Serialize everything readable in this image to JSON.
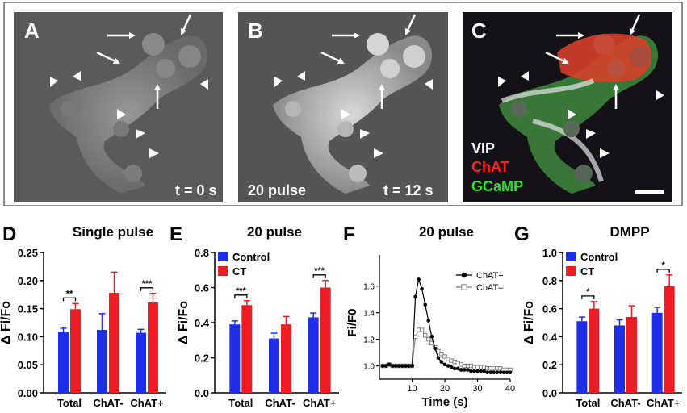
{
  "colors": {
    "control": "#1f2fe6",
    "ct": "#ee1c24",
    "chat_plus": "#000000",
    "chat_minus": "#7f7f7f",
    "vip_label": "#ffffff",
    "chat_label": "#ff2020",
    "gcamp_label": "#33dd33"
  },
  "micrographs": {
    "a": {
      "letter": "A",
      "time_label": "t = 0 s"
    },
    "b": {
      "letter": "B",
      "pulse_label": "20 pulse",
      "time_label": "t = 12 s"
    },
    "c": {
      "letter": "C",
      "legend": [
        "VIP",
        "ChAT",
        "GCaMP"
      ]
    }
  },
  "chart_data": [
    {
      "panel": "D",
      "type": "bar",
      "title": "Single pulse",
      "ylabel": "Δ Fi/Fo",
      "xlabel": "",
      "ylim": [
        0,
        0.25
      ],
      "yticks": [
        "0.00",
        "0.05",
        "0.10",
        "0.15",
        "0.20",
        "0.25"
      ],
      "ytick_values": [
        0,
        0.05,
        0.1,
        0.15,
        0.2,
        0.25
      ],
      "categories": [
        "Total",
        "ChAT-",
        "ChAT+"
      ],
      "series": [
        {
          "key": "control",
          "values": [
            0.108,
            0.112,
            0.107
          ],
          "errors": [
            0.007,
            0.029,
            0.006
          ]
        },
        {
          "key": "ct",
          "values": [
            0.149,
            0.178,
            0.161
          ],
          "errors": [
            0.01,
            0.037,
            0.016
          ]
        }
      ],
      "significance": [
        "**",
        "",
        "***"
      ]
    },
    {
      "panel": "E",
      "type": "bar",
      "title": "20 pulse",
      "ylabel": "Δ Fi/Fo",
      "xlabel": "",
      "ylim": [
        0,
        0.8
      ],
      "yticks": [
        "0.0",
        "0.2",
        "0.4",
        "0.6",
        "0.8"
      ],
      "ytick_values": [
        0,
        0.2,
        0.4,
        0.6,
        0.8
      ],
      "categories": [
        "Total",
        "ChAT-",
        "ChAT+"
      ],
      "legend": [
        "Control",
        "CT"
      ],
      "legend_position": "top-left",
      "series": [
        {
          "key": "control",
          "name": "Control",
          "values": [
            0.39,
            0.31,
            0.43
          ],
          "errors": [
            0.02,
            0.03,
            0.025
          ]
        },
        {
          "key": "ct",
          "name": "CT",
          "values": [
            0.5,
            0.39,
            0.6
          ],
          "errors": [
            0.025,
            0.045,
            0.04
          ]
        }
      ],
      "significance": [
        "***",
        "",
        "***"
      ]
    },
    {
      "panel": "F",
      "type": "line",
      "title": "20 pulse",
      "ylabel": "Fi/F0",
      "xlabel": "Time (s)",
      "xlim": [
        0,
        40
      ],
      "ylim": [
        0.9,
        1.75
      ],
      "xticks": [
        "10",
        "20",
        "30",
        "40"
      ],
      "xtick_values": [
        10,
        20,
        30,
        40
      ],
      "yticks": [
        "1.0",
        "1.2",
        "1.4",
        "1.6"
      ],
      "ytick_values": [
        1.0,
        1.2,
        1.4,
        1.6
      ],
      "legend": [
        "ChAT+",
        "ChAT–"
      ],
      "legend_position": "top-right",
      "x": [
        1,
        2,
        3,
        4,
        5,
        6,
        7,
        8,
        9,
        10,
        11,
        12,
        13,
        14,
        15,
        16,
        17,
        18,
        19,
        20,
        21,
        22,
        23,
        24,
        25,
        26,
        27,
        28,
        29,
        30,
        31,
        32,
        33,
        34,
        35,
        36,
        37,
        38,
        39,
        40
      ],
      "series": [
        {
          "key": "chat_plus",
          "name": "ChAT+",
          "values": [
            1.0,
            1.0,
            1.01,
            1.0,
            1.0,
            1.0,
            1.0,
            1.0,
            1.0,
            1.0,
            1.52,
            1.65,
            1.58,
            1.46,
            1.34,
            1.22,
            1.13,
            1.06,
            1.03,
            1.01,
            1.0,
            0.99,
            0.98,
            0.98,
            0.97,
            0.97,
            0.97,
            0.96,
            0.96,
            0.96,
            0.96,
            0.96,
            0.95,
            0.95,
            0.95,
            0.95,
            0.95,
            0.95,
            0.95,
            0.95
          ]
        },
        {
          "key": "chat_minus",
          "name": "ChAT–",
          "values": [
            1.0,
            1.0,
            1.01,
            1.0,
            1.0,
            1.0,
            1.0,
            1.0,
            1.0,
            1.0,
            1.22,
            1.27,
            1.27,
            1.23,
            1.2,
            1.17,
            1.14,
            1.11,
            1.09,
            1.07,
            1.05,
            1.04,
            1.03,
            1.02,
            1.01,
            1.0,
            1.0,
            1.0,
            0.99,
            0.99,
            0.99,
            0.99,
            0.98,
            0.98,
            0.98,
            0.98,
            0.98,
            0.97,
            0.97,
            0.97
          ]
        }
      ]
    },
    {
      "panel": "G",
      "type": "bar",
      "title": "DMPP",
      "ylabel": "Δ Fi/Fo",
      "xlabel": "",
      "ylim": [
        0,
        1.0
      ],
      "yticks": [
        "0.0",
        "0.2",
        "0.4",
        "0.6",
        "0.8",
        "1.0"
      ],
      "ytick_values": [
        0,
        0.2,
        0.4,
        0.6,
        0.8,
        1.0
      ],
      "categories": [
        "Total",
        "ChAT-",
        "ChAT+"
      ],
      "legend": [
        "Control",
        "CT"
      ],
      "legend_position": "top-left",
      "series": [
        {
          "key": "control",
          "name": "Control",
          "values": [
            0.51,
            0.48,
            0.57
          ],
          "errors": [
            0.03,
            0.04,
            0.04
          ]
        },
        {
          "key": "ct",
          "name": "CT",
          "values": [
            0.6,
            0.54,
            0.76
          ],
          "errors": [
            0.05,
            0.08,
            0.08
          ]
        }
      ],
      "significance": [
        "*",
        "",
        "*"
      ]
    }
  ]
}
